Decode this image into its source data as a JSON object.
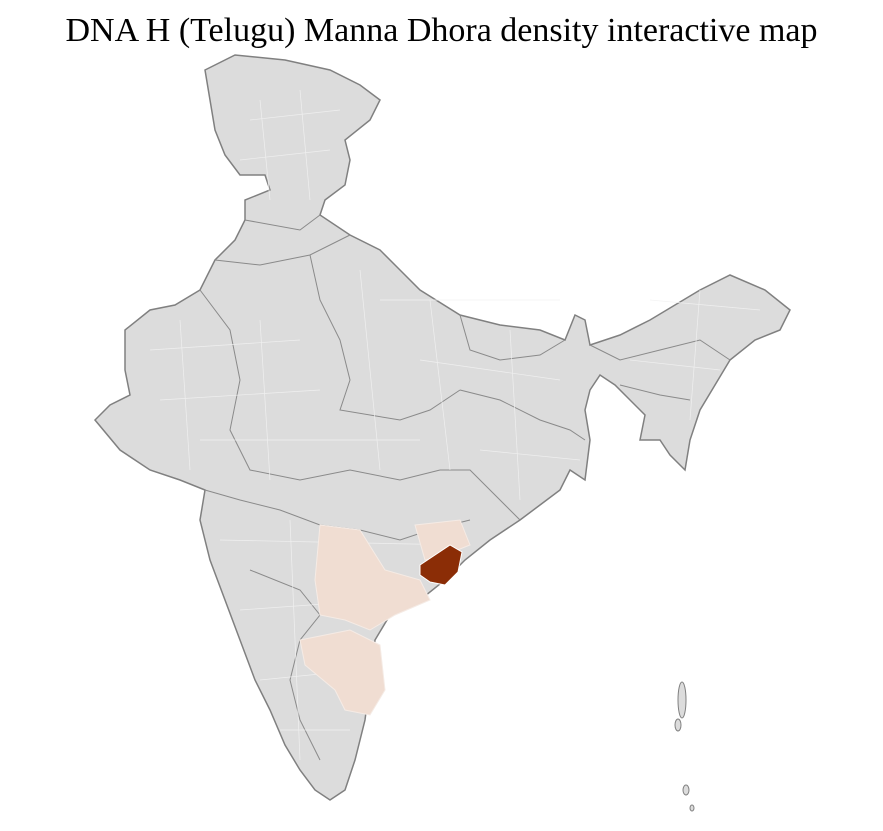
{
  "header": {
    "title": "DNA H (Telugu) Manna Dhora density interactive map"
  }
}
